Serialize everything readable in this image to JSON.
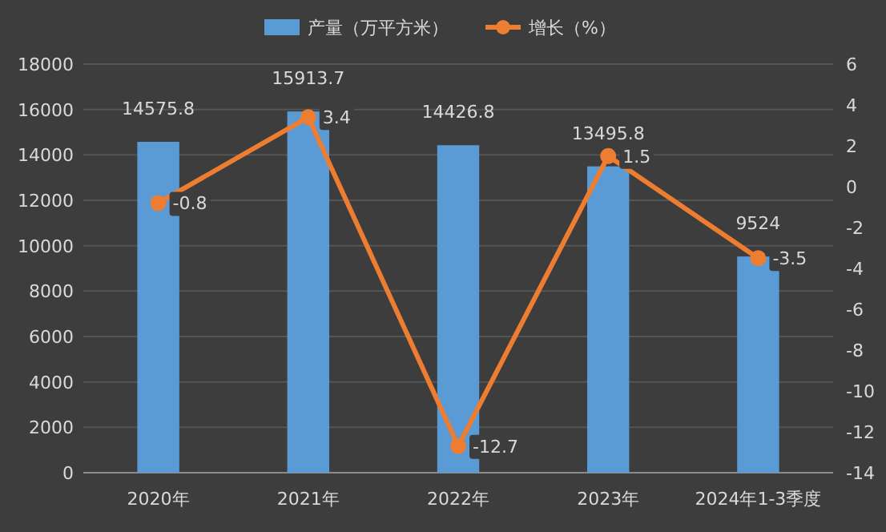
{
  "chart_data": {
    "type": "bar",
    "categories": [
      "2020年",
      "2021年",
      "2022年",
      "2023年",
      "2024年1-3季度"
    ],
    "series": [
      {
        "name": "产量（万平方米）",
        "color": "#5b9bd5",
        "values": [
          14575.8,
          15913.7,
          14426.8,
          13495.8,
          9524
        ]
      },
      {
        "name": "增长（%）",
        "type": "line",
        "axis": "y2",
        "color": "#ed7d31",
        "values": [
          -0.8,
          3.4,
          -12.7,
          1.5,
          -3.5
        ]
      }
    ],
    "ylim": [
      0,
      18000
    ],
    "yticks": [
      0,
      2000,
      4000,
      6000,
      8000,
      10000,
      12000,
      14000,
      16000,
      18000
    ],
    "y2lim": [
      -14,
      6
    ],
    "y2ticks": [
      -14,
      -12,
      -10,
      -8,
      -6,
      -4,
      -2,
      0,
      2,
      4,
      6
    ],
    "data_labels": true,
    "legend": "top",
    "marker": "circle",
    "line_style": "solid",
    "grid": "y"
  }
}
